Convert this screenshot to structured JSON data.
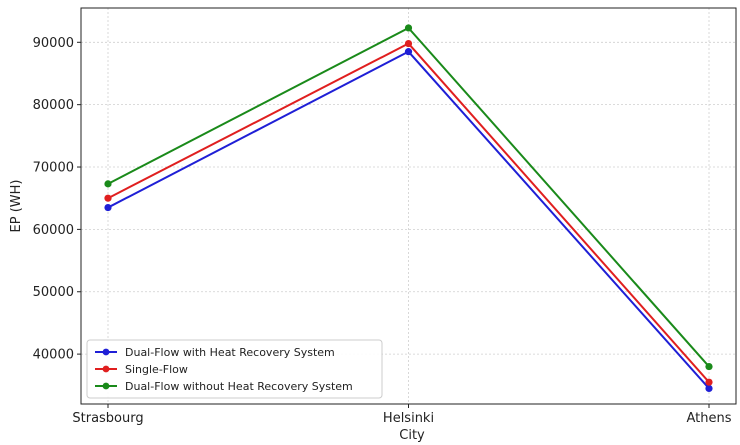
{
  "chart_data": {
    "type": "line",
    "categories": [
      "Strasbourg",
      "Helsinki",
      "Athens"
    ],
    "series": [
      {
        "name": "Dual-Flow with Heat Recovery System",
        "color": "#1f1fd6",
        "values": [
          63500,
          88500,
          34500
        ]
      },
      {
        "name": "Single-Flow",
        "color": "#e01f1f",
        "values": [
          65000,
          89800,
          35500
        ]
      },
      {
        "name": "Dual-Flow without Heat Recovery System",
        "color": "#1a8a1a",
        "values": [
          67300,
          92300,
          38000
        ]
      }
    ],
    "xlabel": "City",
    "ylabel": "EP (WH)",
    "yticks": [
      40000,
      50000,
      60000,
      70000,
      80000,
      90000
    ],
    "ylim": [
      32000,
      95500
    ],
    "grid": true,
    "legend_position": "bottom-left"
  }
}
